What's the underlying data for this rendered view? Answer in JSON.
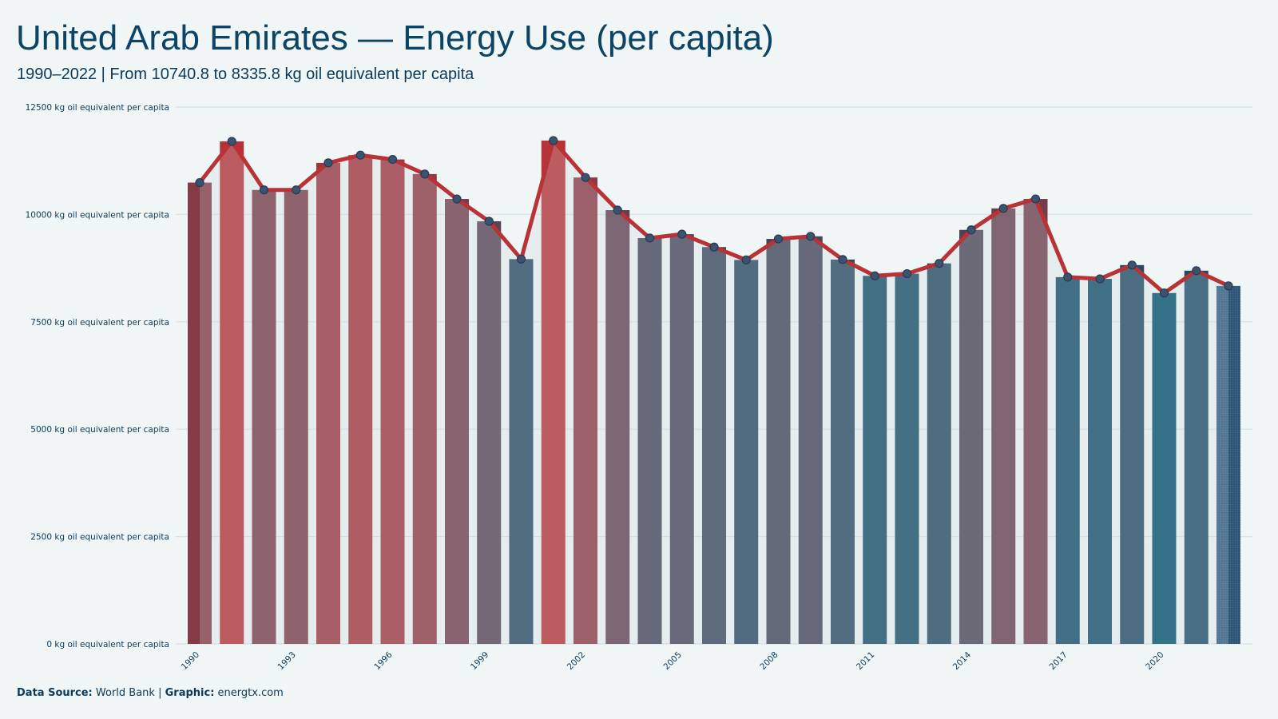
{
  "header": {
    "title": "United Arab Emirates — Energy Use (per capita)",
    "subtitle": "1990–2022 | From 10740.8 to 8335.8 kg oil equivalent per capita"
  },
  "footer": {
    "source_label": "Data Source:",
    "source_value": "World Bank",
    "separator": "|",
    "graphic_label": "Graphic:",
    "graphic_value": "energtx.com"
  },
  "colors": {
    "background": "#f0f5f5",
    "high": "#b83236",
    "low": "#03506d",
    "line": "#b83236",
    "marker_fill": "#3a536e",
    "marker_stroke": "#2a3a52",
    "grid": "#d8e1e6",
    "text": "#0c3b5a"
  },
  "chart_data": {
    "type": "bar",
    "overlay": "line with markers",
    "x": [
      1990,
      1991,
      1992,
      1993,
      1994,
      1995,
      1996,
      1997,
      1998,
      1999,
      2000,
      2001,
      2002,
      2003,
      2004,
      2005,
      2006,
      2007,
      2008,
      2009,
      2010,
      2011,
      2012,
      2013,
      2014,
      2015,
      2016,
      2017,
      2018,
      2019,
      2020,
      2021,
      2022
    ],
    "values": [
      10740.8,
      11700,
      10570,
      10570,
      11200,
      11380,
      11280,
      10940,
      10360,
      9840,
      8960,
      11720,
      10860,
      10100,
      9450,
      9540,
      9240,
      8940,
      9430,
      9490,
      8950,
      8570,
      8620,
      8860,
      9640,
      10140,
      10360,
      8540,
      8500,
      8820,
      8170,
      8690,
      8335.8
    ],
    "ylim": [
      0,
      12500
    ],
    "y_ticks": [
      0,
      2500,
      5000,
      7500,
      10000,
      12500
    ],
    "y_tick_labels": [
      "0 kg oil equivalent per capita",
      "2500 kg oil equivalent per capita",
      "5000 kg oil equivalent per capita",
      "7500 kg oil equivalent per capita",
      "10000 kg oil equivalent per capita",
      "12500 kg oil equivalent per capita"
    ],
    "x_tick_labels": [
      "1990",
      "1993",
      "1996",
      "1999",
      "2002",
      "2005",
      "2008",
      "2011",
      "2014",
      "2017",
      "2020"
    ],
    "grid": true,
    "legend": "none",
    "xlabel": "",
    "ylabel": ""
  }
}
